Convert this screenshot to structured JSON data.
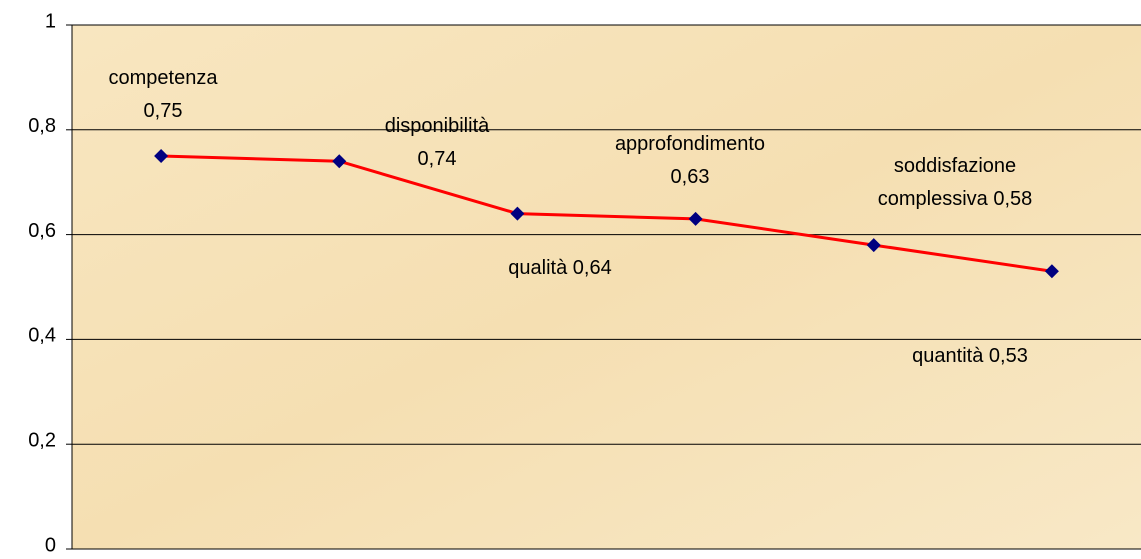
{
  "chart_data": {
    "type": "line",
    "categories": [
      "competenza",
      "disponibilità",
      "qualità",
      "approfondimento",
      "soddisfazione complessiva",
      "quantità"
    ],
    "series": [
      {
        "color": "#ff0000",
        "marker_color": "#000080",
        "values": [
          0.75,
          0.74,
          0.64,
          0.63,
          0.58,
          0.53
        ],
        "value_labels": [
          "0,75",
          "0,74",
          "0,64",
          "0,63",
          "0,58",
          "0,53"
        ]
      }
    ],
    "ylim": [
      0,
      1
    ],
    "yticks": [
      0,
      {
        "value": 0.2,
        "label": "0,2"
      },
      {
        "value": 0.4,
        "label": "0,4"
      },
      {
        "value": 0.6,
        "label": "0,6"
      },
      {
        "value": 0.8,
        "label": "0,8"
      },
      1
    ],
    "grid": true
  }
}
